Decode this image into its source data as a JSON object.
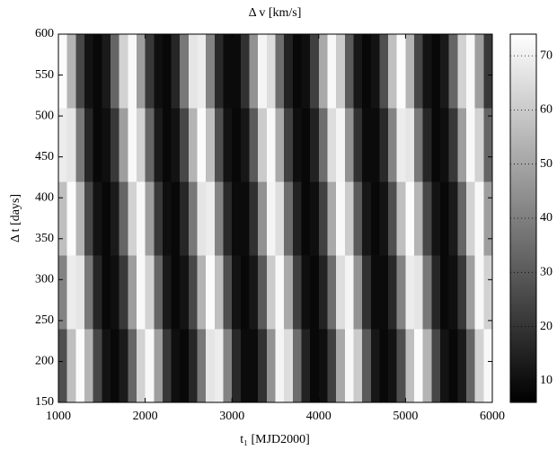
{
  "chart_data": {
    "type": "heatmap",
    "title": "Δ v [km/s]",
    "xlabel": "t₁ [MJD2000]",
    "ylabel": "Δ t [days]",
    "xlim": [
      1000,
      6000
    ],
    "xticks": [
      1000,
      2000,
      3000,
      4000,
      5000,
      6000
    ],
    "ylim": [
      150,
      600
    ],
    "yticks": [
      150,
      200,
      250,
      300,
      350,
      400,
      450,
      500,
      550,
      600
    ],
    "colormap": "gray",
    "clim": [
      6,
      74
    ],
    "cticks": [
      10,
      20,
      30,
      40,
      50,
      60,
      70
    ],
    "z": [
      [
        27,
        57,
        73,
        54,
        25,
        11,
        8,
        13,
        33,
        62,
        72,
        48,
        21,
        10,
        8,
        16,
        38,
        67,
        69,
        41,
        17,
        9,
        9,
        19,
        45,
        71,
        65,
        35,
        15,
        8,
        10,
        23,
        51,
        72,
        60,
        30,
        12,
        8,
        11,
        27,
        57,
        73,
        54,
        25,
        11,
        8,
        13,
        33,
        62,
        72
      ],
      [
        41,
        69,
        67,
        38,
        16,
        8,
        10,
        21,
        48,
        72,
        62,
        33,
        13,
        8,
        11,
        25,
        54,
        73,
        57,
        27,
        11,
        8,
        12,
        30,
        60,
        72,
        51,
        23,
        10,
        8,
        15,
        35,
        65,
        71,
        45,
        19,
        9,
        9,
        17,
        41,
        69,
        67,
        38,
        16,
        8,
        10,
        21,
        48,
        72,
        62
      ],
      [
        57,
        73,
        54,
        25,
        11,
        8,
        13,
        33,
        62,
        72,
        48,
        21,
        10,
        8,
        16,
        38,
        67,
        69,
        41,
        17,
        9,
        9,
        19,
        45,
        71,
        65,
        35,
        15,
        8,
        10,
        23,
        51,
        72,
        60,
        30,
        12,
        8,
        11,
        27,
        57,
        73,
        54,
        25,
        11,
        8,
        13,
        33,
        62,
        72,
        48
      ],
      [
        69,
        67,
        38,
        16,
        8,
        10,
        21,
        48,
        72,
        62,
        33,
        13,
        8,
        11,
        25,
        54,
        73,
        57,
        27,
        11,
        8,
        12,
        30,
        60,
        72,
        51,
        23,
        10,
        8,
        15,
        35,
        65,
        71,
        45,
        19,
        9,
        9,
        17,
        41,
        69,
        67,
        38,
        16,
        8,
        10,
        21,
        48,
        72,
        62,
        33
      ],
      [
        73,
        54,
        25,
        11,
        8,
        13,
        33,
        62,
        72,
        48,
        21,
        10,
        8,
        16,
        38,
        67,
        69,
        41,
        17,
        9,
        9,
        19,
        45,
        71,
        65,
        35,
        15,
        8,
        10,
        23,
        51,
        72,
        60,
        30,
        12,
        8,
        11,
        27,
        57,
        73,
        54,
        25,
        11,
        8,
        13,
        33,
        62,
        72,
        48,
        21
      ]
    ]
  }
}
